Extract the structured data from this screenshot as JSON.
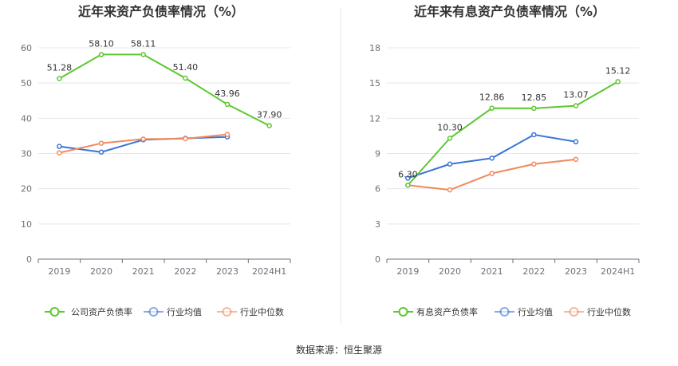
{
  "colors": {
    "main": "#5cc72f",
    "avg": "#3a74d6",
    "median": "#f08a5d",
    "grid": "#e6e8ef",
    "axis": "#6e7079",
    "divider": "#e8e8e8"
  },
  "source": "数据来源：恒生聚源",
  "chart_data": [
    {
      "type": "line",
      "title": "近年来资产负债率情况（%）",
      "categories": [
        "2019",
        "2020",
        "2021",
        "2022",
        "2023",
        "2024H1"
      ],
      "ylim": [
        0,
        60
      ],
      "yticks": [
        "0",
        "10",
        "20",
        "30",
        "40",
        "50",
        "60"
      ],
      "grid": true,
      "legend_position": "bottom",
      "series": [
        {
          "name": "公司资产负债率",
          "key": "main",
          "values": [
            51.28,
            58.1,
            58.11,
            51.4,
            43.96,
            37.9
          ],
          "labels": [
            "51.28",
            "58.10",
            "58.11",
            "51.40",
            "43.96",
            "37.90"
          ]
        },
        {
          "name": "行业均值",
          "key": "avg",
          "values": [
            32.0,
            30.4,
            33.9,
            34.3,
            34.7,
            null
          ]
        },
        {
          "name": "行业中位数",
          "key": "median",
          "values": [
            30.2,
            32.9,
            34.1,
            34.2,
            35.4,
            null
          ]
        }
      ]
    },
    {
      "type": "line",
      "title": "近年来有息资产负债率情况（%）",
      "categories": [
        "2019",
        "2020",
        "2021",
        "2022",
        "2023",
        "2024H1"
      ],
      "ylim": [
        0,
        18
      ],
      "yticks": [
        "0",
        "3",
        "6",
        "9",
        "12",
        "15",
        "18"
      ],
      "grid": true,
      "legend_position": "bottom",
      "series": [
        {
          "name": "有息资产负债率",
          "key": "main",
          "values": [
            6.3,
            10.3,
            12.86,
            12.85,
            13.07,
            15.12
          ],
          "labels": [
            "6.30",
            "10.30",
            "12.86",
            "12.85",
            "13.07",
            "15.12"
          ]
        },
        {
          "name": "行业均值",
          "key": "avg",
          "values": [
            6.9,
            8.1,
            8.6,
            10.6,
            10.0,
            null
          ]
        },
        {
          "name": "行业中位数",
          "key": "median",
          "values": [
            6.3,
            5.9,
            7.3,
            8.1,
            8.5,
            null
          ]
        }
      ]
    }
  ]
}
